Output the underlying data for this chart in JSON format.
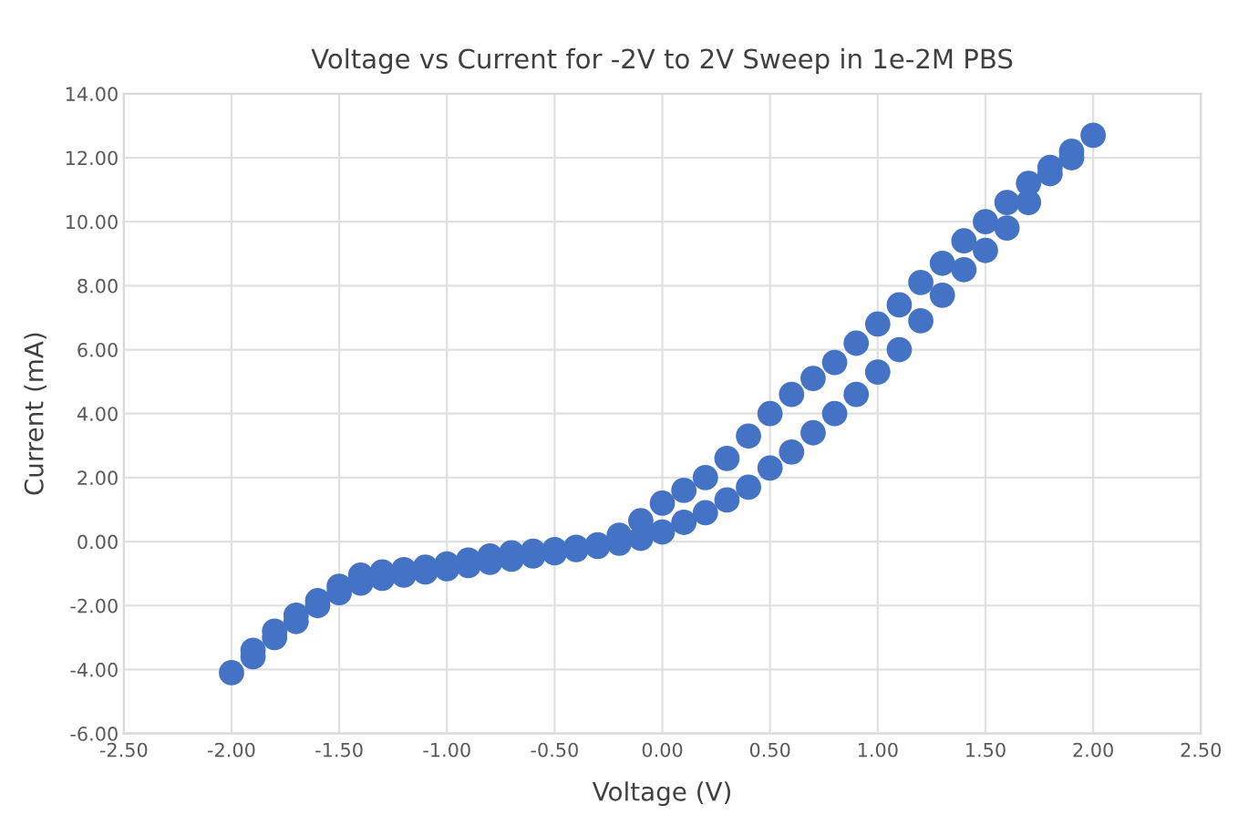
{
  "chart_data": {
    "type": "scatter",
    "marker": "circle",
    "title": "Voltage vs Current for -2V to 2V Sweep in 1e-2M PBS",
    "xlabel": "Voltage (V)",
    "ylabel": "Current (mA)",
    "series": [
      {
        "color": "#4472c4",
        "x": [
          -2.0,
          -1.9,
          -1.8,
          -1.7,
          -1.6,
          -1.5,
          -1.4,
          -1.3,
          -1.2,
          -1.1,
          -1.0,
          -0.9,
          -0.8,
          -0.7,
          -0.6,
          -0.5,
          -0.4,
          -0.3,
          -0.2,
          -0.1,
          0.0,
          0.1,
          0.2,
          0.3,
          0.4,
          0.5,
          0.6,
          0.7,
          0.8,
          0.9,
          1.0,
          1.1,
          1.2,
          1.3,
          1.4,
          1.5,
          1.6,
          1.7,
          1.8,
          1.9,
          2.0,
          1.9,
          1.8,
          1.7,
          1.6,
          1.5,
          1.4,
          1.3,
          1.2,
          1.1,
          1.0,
          0.9,
          0.8,
          0.7,
          0.6,
          0.5,
          0.4,
          0.3,
          0.2,
          0.1,
          0.0,
          -0.1,
          -0.2,
          -0.3,
          -0.4,
          -0.5,
          -0.6,
          -0.7,
          -0.8,
          -0.9,
          -1.0,
          -1.1,
          -1.2,
          -1.3,
          -1.4,
          -1.5,
          -1.6,
          -1.7,
          -1.8,
          -1.9
        ],
        "values": [
          -4.1,
          -3.4,
          -2.8,
          -2.3,
          -1.85,
          -1.4,
          -1.05,
          -0.95,
          -0.88,
          -0.8,
          -0.7,
          -0.58,
          -0.45,
          -0.35,
          -0.3,
          -0.25,
          -0.18,
          -0.1,
          0.2,
          0.65,
          1.2,
          1.6,
          2.0,
          2.6,
          3.3,
          4.0,
          4.6,
          5.1,
          5.6,
          6.2,
          6.8,
          7.4,
          8.1,
          8.7,
          9.4,
          10.0,
          10.6,
          11.2,
          11.7,
          12.2,
          12.7,
          12.0,
          11.5,
          10.6,
          9.8,
          9.1,
          8.5,
          7.7,
          6.9,
          6.0,
          5.3,
          4.6,
          4.0,
          3.4,
          2.8,
          2.3,
          1.7,
          1.3,
          0.9,
          0.6,
          0.3,
          0.1,
          -0.05,
          -0.15,
          -0.25,
          -0.35,
          -0.45,
          -0.55,
          -0.65,
          -0.75,
          -0.85,
          -0.95,
          -1.05,
          -1.15,
          -1.3,
          -1.6,
          -2.0,
          -2.5,
          -3.0,
          -3.6
        ]
      }
    ],
    "xlim": [
      -2.5,
      2.5
    ],
    "xticks": [
      {
        "value": -2.5,
        "label": "-2.50"
      },
      {
        "value": -2.0,
        "label": "-2.00"
      },
      {
        "value": -1.5,
        "label": "-1.50"
      },
      {
        "value": -1.0,
        "label": "-1.00"
      },
      {
        "value": -0.5,
        "label": "-0.50"
      },
      {
        "value": 0,
        "label": "0.00"
      },
      {
        "value": 0.5,
        "label": "0.50"
      },
      {
        "value": 1.0,
        "label": "1.00"
      },
      {
        "value": 1.5,
        "label": "1.50"
      },
      {
        "value": 2.0,
        "label": "2.00"
      },
      {
        "value": 2.5,
        "label": "2.50"
      }
    ],
    "ylim": [
      -6,
      14
    ],
    "yticks": [
      {
        "value": -6,
        "label": "-6.00"
      },
      {
        "value": -4,
        "label": "-4.00"
      },
      {
        "value": -2,
        "label": "-2.00"
      },
      {
        "value": 0,
        "label": "0.00"
      },
      {
        "value": 2,
        "label": "2.00"
      },
      {
        "value": 4,
        "label": "4.00"
      },
      {
        "value": 6,
        "label": "6.00"
      },
      {
        "value": 8,
        "label": "8.00"
      },
      {
        "value": 10,
        "label": "10.00"
      },
      {
        "value": 12,
        "label": "12.00"
      },
      {
        "value": 14,
        "label": "14.00"
      }
    ],
    "grid": true
  }
}
